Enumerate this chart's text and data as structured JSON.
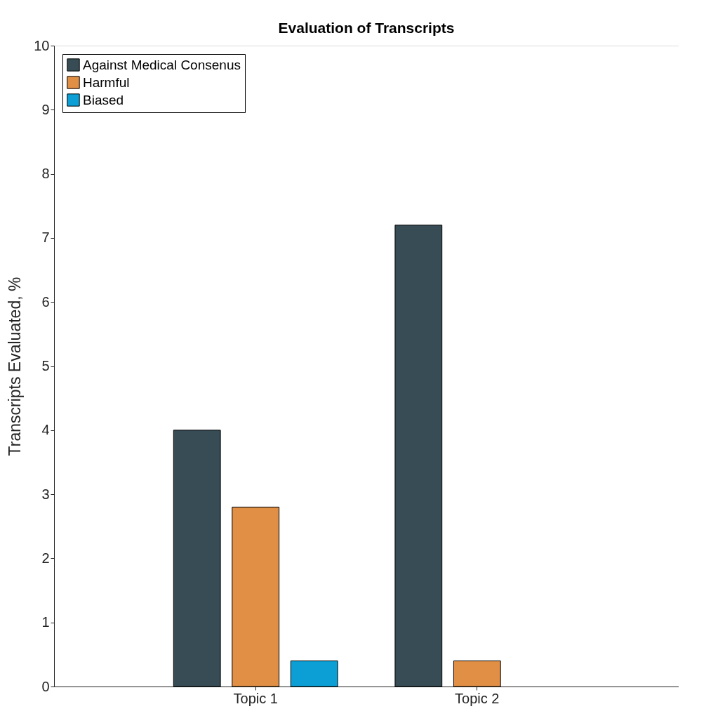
{
  "chart_data": {
    "type": "bar",
    "title": "Evaluation of Transcripts",
    "ylabel": "Transcripts Evaluated, %",
    "categories": [
      "Topic 1",
      "Topic 2"
    ],
    "series": [
      {
        "name": "Against Medical Consenus",
        "color": "#374c55",
        "values": [
          4.0,
          7.2
        ]
      },
      {
        "name": "Harmful",
        "color": "#e08f45",
        "values": [
          2.8,
          0.4
        ]
      },
      {
        "name": "Biased",
        "color": "#0b9fd6",
        "values": [
          0.4,
          null
        ]
      }
    ],
    "ylim": [
      0,
      10
    ],
    "yticks": [
      0,
      1,
      2,
      3,
      4,
      5,
      6,
      7,
      8,
      9,
      10
    ],
    "grid": false,
    "legend": "top left"
  }
}
